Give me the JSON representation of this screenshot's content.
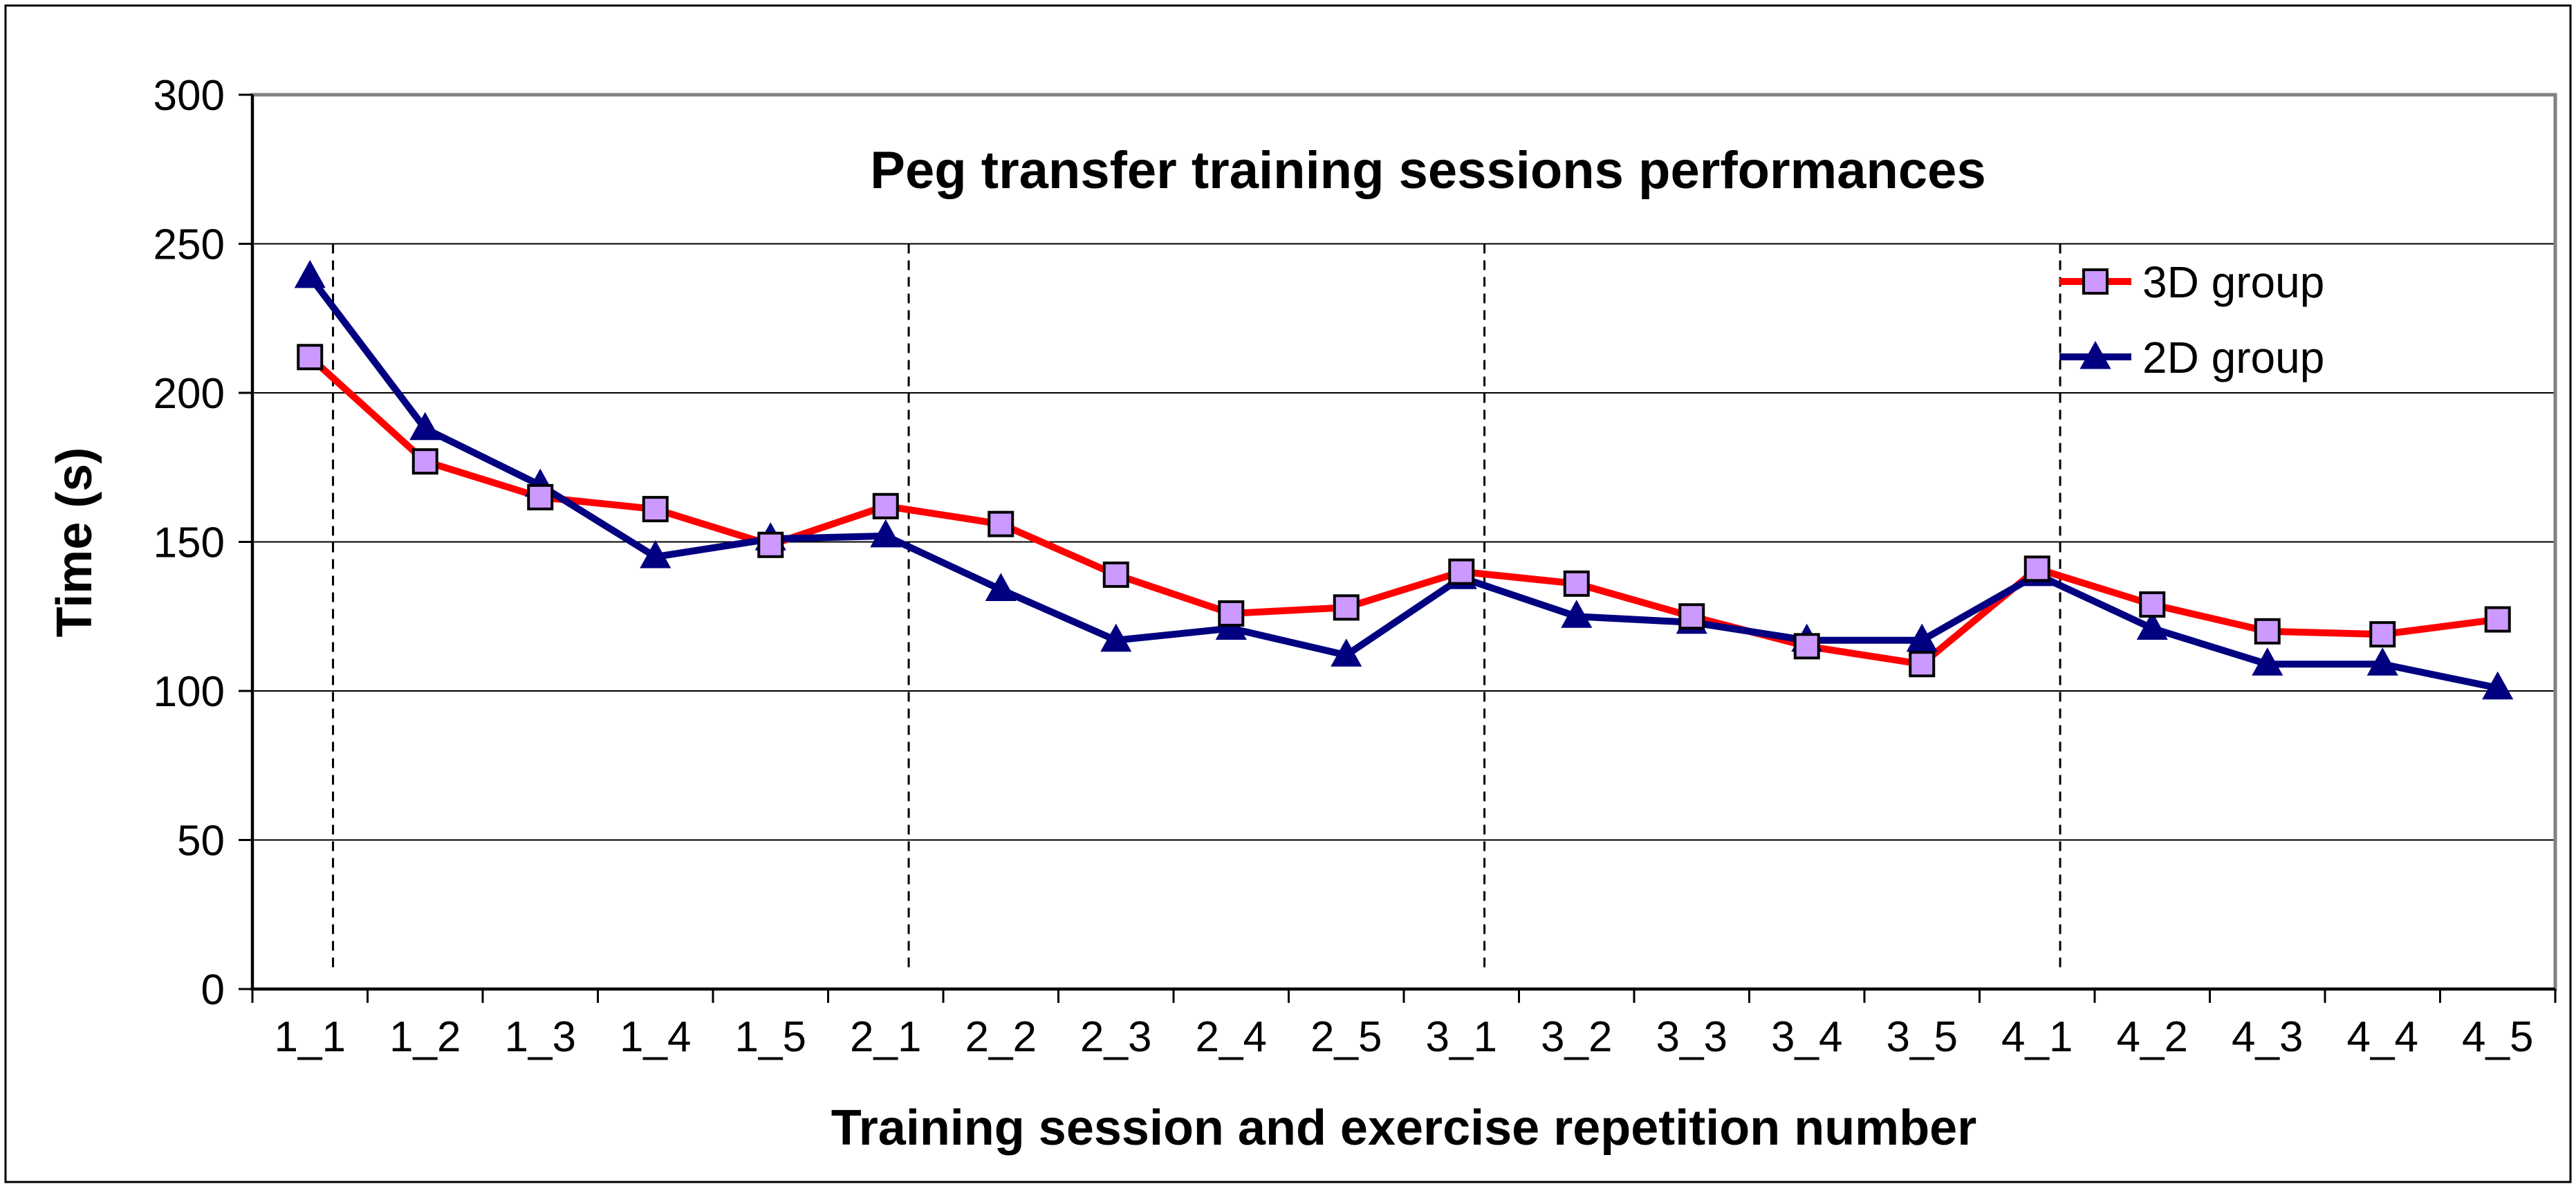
{
  "chart_data": {
    "type": "line",
    "title": "Peg transfer training sessions performances",
    "xlabel": "Training session and exercise repetition number",
    "ylabel": "Time (s)",
    "ylim": [
      0,
      300
    ],
    "yticks": [
      0,
      50,
      100,
      150,
      200,
      250,
      300
    ],
    "grid": true,
    "legend_position": "top-right",
    "categories": [
      "1_1",
      "1_2",
      "1_3",
      "1_4",
      "1_5",
      "2_1",
      "2_2",
      "2_3",
      "2_4",
      "2_5",
      "3_1",
      "3_2",
      "3_3",
      "3_4",
      "3_5",
      "4_1",
      "4_2",
      "4_3",
      "4_4",
      "4_5"
    ],
    "session_dividers_after": [
      "1_1",
      "2_1",
      "3_1",
      "4_1"
    ],
    "series": [
      {
        "name": "3D group",
        "color": "#ff0000",
        "marker": "square",
        "marker_color": "#cc99ff",
        "values": [
          212,
          177,
          165,
          161,
          149,
          162,
          156,
          139,
          126,
          128,
          140,
          136,
          125,
          115,
          109,
          141,
          129,
          120,
          119,
          124
        ]
      },
      {
        "name": "2D group",
        "color": "#000080",
        "marker": "triangle",
        "marker_color": "#000080",
        "values": [
          239,
          188,
          169,
          145,
          151,
          152,
          134,
          117,
          121,
          112,
          138,
          125,
          123,
          117,
          117,
          139,
          121,
          109,
          109,
          101
        ]
      }
    ]
  }
}
